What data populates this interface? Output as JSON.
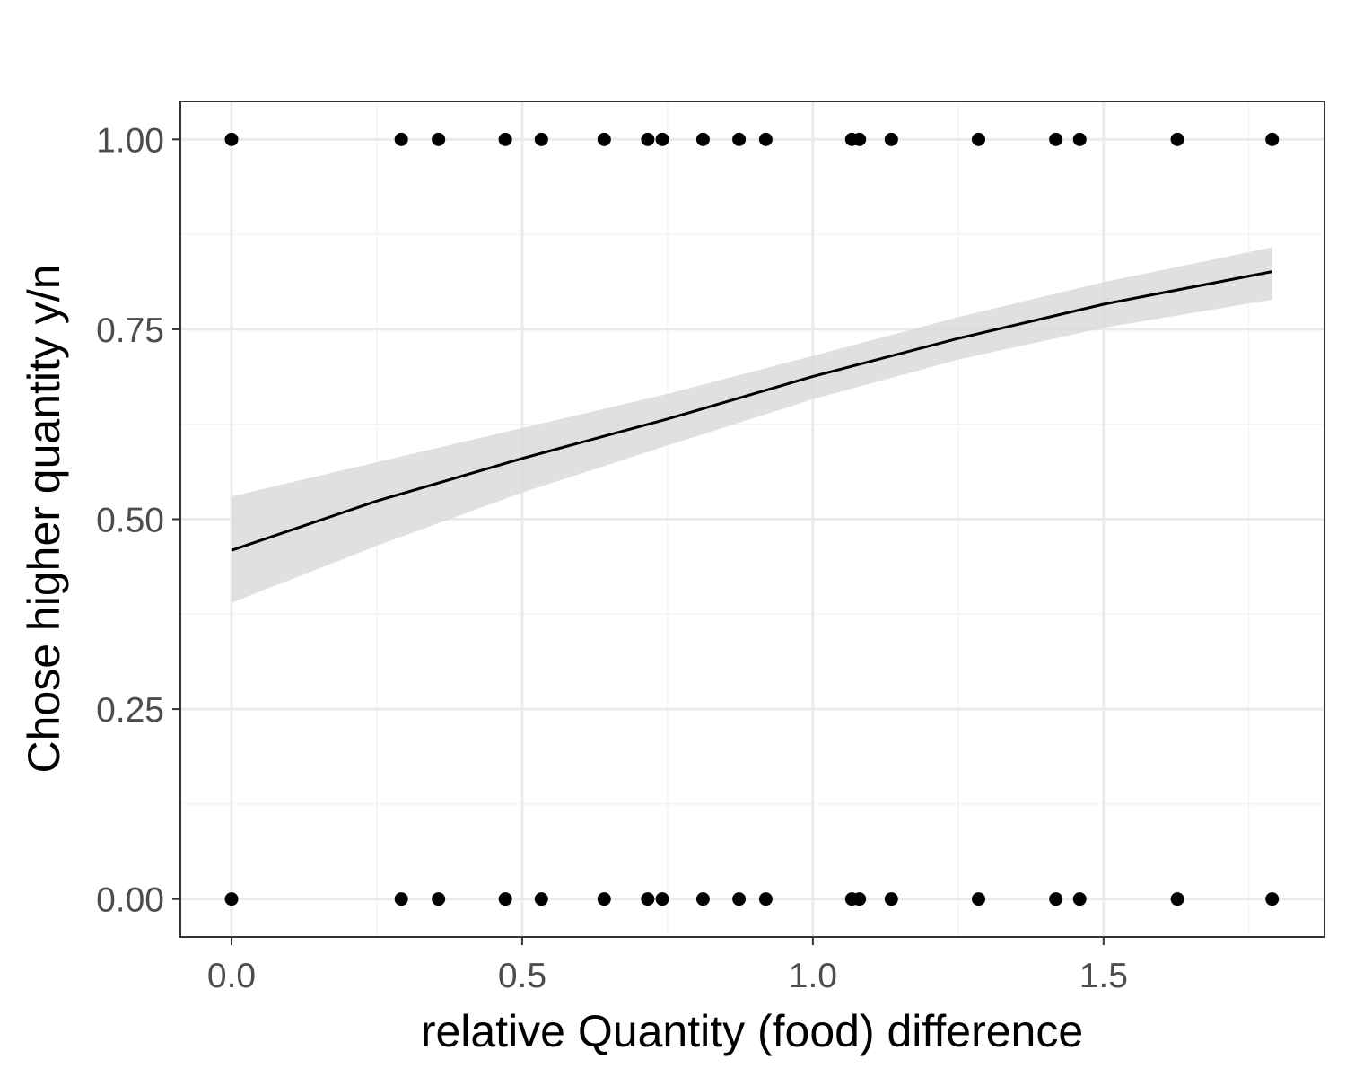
{
  "chart_data": {
    "type": "scatter",
    "title": "",
    "xlabel": "relative Quantity (food) difference",
    "ylabel": "Chose higher quantity y/n",
    "xlim": [
      -0.088,
      1.88
    ],
    "ylim": [
      -0.05,
      1.05
    ],
    "x_ticks": [
      0.0,
      0.5,
      1.0,
      1.5
    ],
    "x_tick_labels": [
      "0.0",
      "0.5",
      "1.0",
      "1.5"
    ],
    "y_ticks": [
      0.0,
      0.25,
      0.5,
      0.75,
      1.0
    ],
    "y_tick_labels": [
      "0.00",
      "0.25",
      "0.50",
      "0.75",
      "1.00"
    ],
    "grid": true,
    "points_x": [
      0.0,
      0.292,
      0.356,
      0.471,
      0.533,
      0.641,
      0.716,
      0.741,
      0.811,
      0.873,
      0.919,
      1.067,
      1.08,
      1.135,
      1.285,
      1.418,
      1.459,
      1.627,
      1.79
    ],
    "points_y_values": [
      0,
      1
    ],
    "series": [
      {
        "type": "line",
        "x": [
          0.0,
          0.25,
          0.5,
          0.75,
          1.0,
          1.25,
          1.5,
          1.79
        ],
        "y": [
          0.459,
          0.524,
          0.58,
          0.632,
          0.688,
          0.738,
          0.783,
          0.826
        ]
      },
      {
        "type": "area",
        "x": [
          0.0,
          0.25,
          0.5,
          0.75,
          1.0,
          1.25,
          1.5,
          1.79
        ],
        "y_lower": [
          0.39,
          0.465,
          0.535,
          0.597,
          0.658,
          0.71,
          0.752,
          0.789
        ],
        "y_upper": [
          0.53,
          0.575,
          0.62,
          0.665,
          0.715,
          0.766,
          0.812,
          0.858
        ]
      }
    ],
    "colors": {
      "panel_border": "#333333",
      "grid_major": "#ebebeb",
      "grid_minor": "#f4f4f4",
      "points": "#000000",
      "line": "#000000",
      "ribbon": "#dadada",
      "tick_text": "#4d4d4d"
    }
  }
}
